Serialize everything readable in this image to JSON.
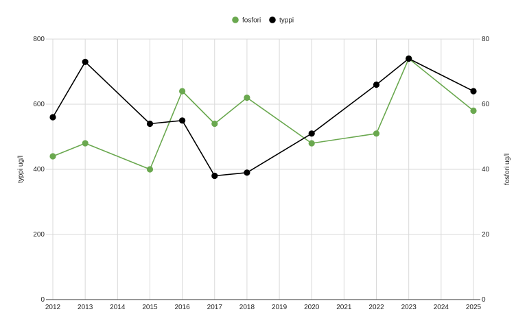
{
  "chart_data": {
    "type": "line",
    "x": [
      2012,
      2013,
      2015,
      2016,
      2017,
      2018,
      2020,
      2022,
      2023,
      2025
    ],
    "x_ticks": [
      "2012",
      "2013",
      "2014",
      "2015",
      "2016",
      "2017",
      "2018",
      "2019",
      "2020",
      "2021",
      "2022",
      "2023",
      "2024",
      "2025"
    ],
    "ylabel_left": "typpi ug/l",
    "ylabel_right": "fosfori ug/l",
    "ylim_left": [
      0,
      800
    ],
    "ylim_right": [
      0,
      80
    ],
    "yticks_left": [
      "0",
      "200",
      "400",
      "600",
      "800"
    ],
    "yticks_right": [
      "0",
      "20",
      "40",
      "60",
      "80"
    ],
    "grid": true,
    "legend_position": "top",
    "series": [
      {
        "name": "fosfori",
        "axis": "right",
        "color": "#6aa84f",
        "values": [
          44,
          48,
          40,
          64,
          54,
          62,
          48,
          51,
          74,
          58
        ]
      },
      {
        "name": "typpi",
        "axis": "left",
        "color": "#000000",
        "values": [
          560,
          730,
          540,
          550,
          380,
          390,
          510,
          660,
          740,
          640
        ]
      }
    ]
  }
}
